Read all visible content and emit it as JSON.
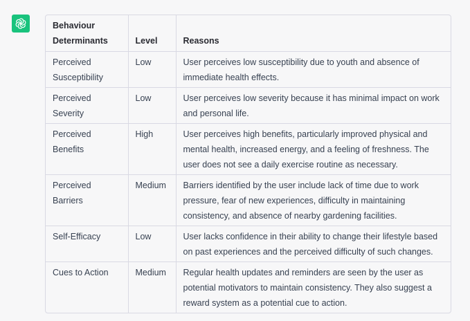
{
  "assistant": {
    "avatar_icon": "openai-logo-icon",
    "avatar_color": "#19c37d"
  },
  "table": {
    "headers": {
      "determinants": "Behaviour Determinants",
      "level": "Level",
      "reasons": "Reasons"
    },
    "rows": [
      {
        "determinant": "Perceived Susceptibility",
        "level": "Low",
        "reason": "User perceives low susceptibility due to youth and absence of immediate health effects."
      },
      {
        "determinant": "Perceived Severity",
        "level": "Low",
        "reason": "User perceives low severity because it has minimal impact on work and personal life."
      },
      {
        "determinant": "Perceived Benefits",
        "level": "High",
        "reason": "User perceives high benefits, particularly improved physical and mental health, increased energy, and a feeling of freshness. The user does not see a daily exercise routine as necessary."
      },
      {
        "determinant": "Perceived Barriers",
        "level": "Medium",
        "reason": "Barriers identified by the user include lack of time due to work pressure, fear of new experiences, difficulty in maintaining consistency, and absence of nearby gardening facilities."
      },
      {
        "determinant": "Self-Efficacy",
        "level": "Low",
        "reason": "User lacks confidence in their ability to change their lifestyle based on past experiences and the perceived difficulty of such changes."
      },
      {
        "determinant": "Cues to Action",
        "level": "Medium",
        "reason": "Regular health updates and reminders are seen by the user as potential motivators to maintain consistency. They also suggest a reward system as a potential cue to action."
      }
    ]
  }
}
